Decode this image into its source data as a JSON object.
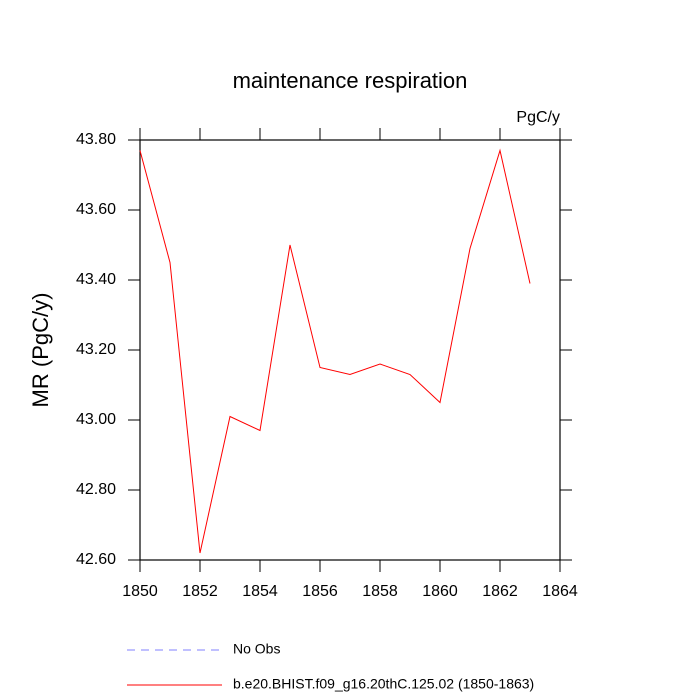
{
  "chart_data": {
    "type": "line",
    "title": "maintenance respiration",
    "units": "PgC/y",
    "y_label": "MR  (PgC/y)",
    "x": [
      1850,
      1851,
      1852,
      1853,
      1854,
      1855,
      1856,
      1857,
      1858,
      1859,
      1860,
      1861,
      1862,
      1863
    ],
    "series": [
      {
        "name": "No Obs",
        "color": "#8080ff",
        "dashed": true,
        "values": [
          null,
          null,
          null,
          null,
          null,
          null,
          null,
          null,
          null,
          null,
          null,
          null,
          null,
          null
        ]
      },
      {
        "name": "b.e20.BHIST.f09_g16.20thC.125.02 (1850-1863)",
        "color": "#ff0000",
        "dashed": false,
        "values": [
          43.77,
          43.45,
          42.62,
          43.01,
          42.97,
          43.5,
          43.15,
          43.13,
          43.16,
          43.13,
          43.05,
          43.49,
          43.77,
          43.39
        ]
      }
    ],
    "xlim": [
      1850,
      1864
    ],
    "xticks": [
      1850,
      1852,
      1854,
      1856,
      1858,
      1860,
      1862,
      1864
    ],
    "ylim": [
      42.6,
      43.8
    ],
    "yticks": [
      {
        "value": 42.6,
        "label": "42.60"
      },
      {
        "value": 42.8,
        "label": "42.80"
      },
      {
        "value": 43.0,
        "label": "43.00"
      },
      {
        "value": 43.2,
        "label": "43.20"
      },
      {
        "value": 43.4,
        "label": "43.40"
      },
      {
        "value": 43.6,
        "label": "43.60"
      },
      {
        "value": 43.8,
        "label": "43.80"
      }
    ],
    "grid": false
  }
}
